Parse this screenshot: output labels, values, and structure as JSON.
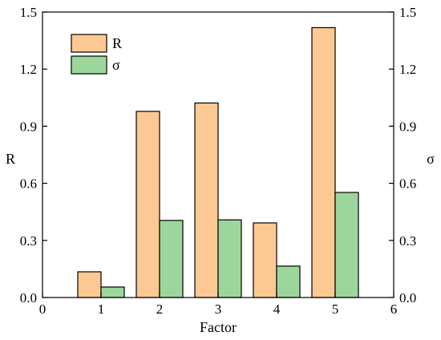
{
  "chart_data": {
    "type": "bar",
    "title": "",
    "xlabel": "Factor",
    "ylabel": "R",
    "y2label": "σ",
    "x": [
      1,
      2,
      3,
      4,
      5
    ],
    "xlim": [
      0,
      6
    ],
    "xticks": [
      0,
      1,
      2,
      3,
      4,
      5,
      6
    ],
    "ylim": [
      0,
      1.5
    ],
    "yticks": [
      "0.0",
      "0.3",
      "0.6",
      "0.9",
      "1.2",
      "1.5"
    ],
    "y2ticks": [
      "0.0",
      "0.3",
      "0.6",
      "0.9",
      "1.2",
      "1.5"
    ],
    "series": [
      {
        "name": "R",
        "color": "#FCC995",
        "values": [
          0.135,
          0.978,
          1.022,
          0.392,
          1.418
        ]
      },
      {
        "name": "σ",
        "color": "#9DD69C",
        "values": [
          0.055,
          0.405,
          0.408,
          0.165,
          0.552
        ]
      }
    ],
    "legend_position": "top-left",
    "grid": false
  }
}
